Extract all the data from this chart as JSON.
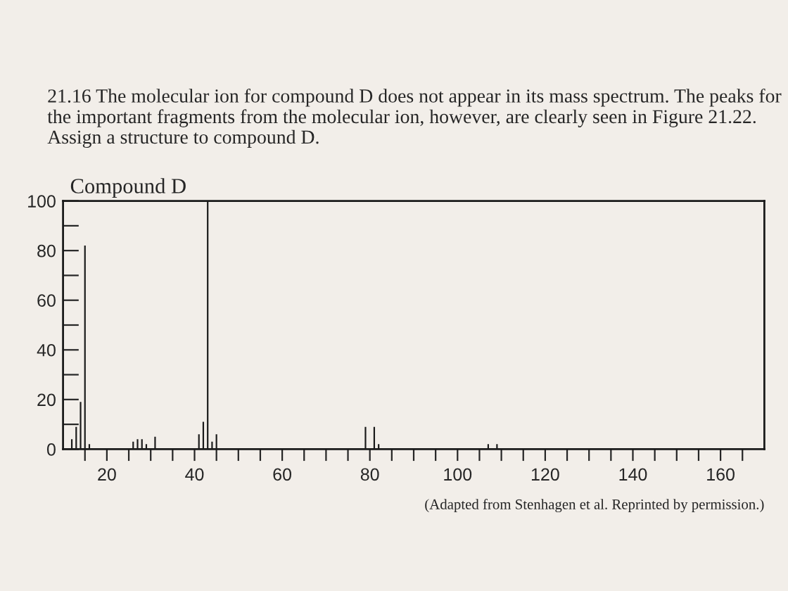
{
  "chart_data": {
    "type": "bar",
    "subtitle": "21.16 The molecular ion for compound D does not appear in its mass spectrum. The peaks for the important fragments from the molecular ion, however, are clearly seen in Figure 21.22. Assign a structure to compound D.",
    "title": "Compound D",
    "x": [
      12,
      13,
      14,
      15,
      16,
      26,
      27,
      28,
      29,
      31,
      41,
      42,
      43,
      44,
      45,
      79,
      81,
      82,
      107,
      109
    ],
    "values": [
      4,
      9,
      19,
      82,
      2,
      3,
      4,
      4,
      2,
      5,
      6,
      11,
      100,
      3,
      6,
      9,
      9,
      2,
      2,
      2
    ],
    "color": "#1a1a1a",
    "xlim": [
      10,
      170
    ],
    "xticks": [
      {
        "value": 15,
        "label": null
      },
      20,
      {
        "value": 25,
        "label": null
      },
      {
        "value": 30,
        "label": null
      },
      {
        "value": 35,
        "label": null
      },
      40,
      {
        "value": 45,
        "label": null
      },
      {
        "value": 50,
        "label": null
      },
      {
        "value": 55,
        "label": null
      },
      60,
      {
        "value": 65,
        "label": null
      },
      {
        "value": 70,
        "label": null
      },
      {
        "value": 75,
        "label": null
      },
      80,
      {
        "value": 85,
        "label": null
      },
      {
        "value": 90,
        "label": null
      },
      {
        "value": 95,
        "label": null
      },
      100,
      {
        "value": 105,
        "label": null
      },
      {
        "value": 110,
        "label": null
      },
      {
        "value": 115,
        "label": null
      },
      120,
      {
        "value": 125,
        "label": null
      },
      {
        "value": 130,
        "label": null
      },
      {
        "value": 135,
        "label": null
      },
      140,
      {
        "value": 145,
        "label": null
      },
      {
        "value": 150,
        "label": null
      },
      {
        "value": 155,
        "label": null
      },
      160,
      {
        "value": 165,
        "label": null
      }
    ],
    "ylim": [
      0,
      100
    ],
    "yticks": [
      0,
      {
        "value": 10,
        "label": null
      },
      20,
      {
        "value": 30,
        "label": null
      },
      40,
      {
        "value": 50,
        "label": null
      },
      60,
      {
        "value": 70,
        "label": null
      },
      80,
      {
        "value": 90,
        "label": null
      },
      100
    ],
    "grid": false,
    "annotations": [
      "(Adapted from Stenhagen et al. Reprinted by permission.)"
    ]
  }
}
